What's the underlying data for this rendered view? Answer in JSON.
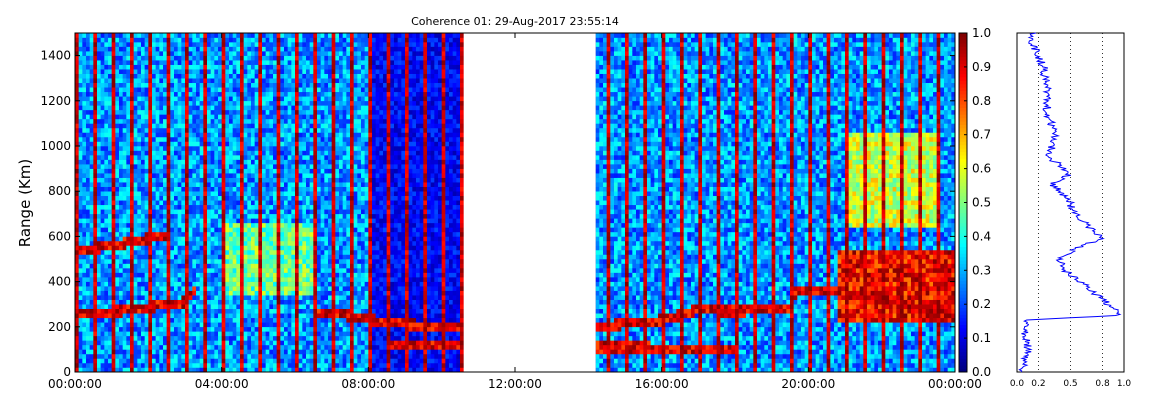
{
  "chart_data": {
    "type": "heatmap",
    "title": "Coherence 01: 29-Aug-2017 23:55:14",
    "ylabel": "Range (Km)",
    "xlabel": "",
    "x_tick_labels": [
      "00:00:00",
      "04:00:00",
      "08:00:00",
      "12:00:00",
      "16:00:00",
      "20:00:00",
      "00:00:00"
    ],
    "x_range_hours": [
      0,
      24
    ],
    "y_ticks": [
      0,
      200,
      400,
      600,
      800,
      1000,
      1200,
      1400
    ],
    "y_range_km": [
      0,
      1500
    ],
    "data_gap_hours": [
      10.6,
      14.2
    ],
    "colorbar": {
      "ticks": [
        0.0,
        0.1,
        0.2,
        0.3,
        0.4,
        0.5,
        0.6,
        0.7,
        0.8,
        0.9,
        1.0
      ],
      "tick_labels": [
        "0.0",
        "0.1",
        "0.2",
        "0.3",
        "0.4",
        "0.5",
        "0.6",
        "0.7",
        "0.8",
        "0.9",
        "1.0"
      ],
      "colormap": "jet",
      "range": [
        0.0,
        1.0
      ]
    },
    "layers": [
      {
        "hours": [
          0,
          1.5,
          3.0,
          3.3
        ],
        "range_km": [
          255,
          275,
          310,
          370
        ]
      },
      {
        "hours": [
          0,
          1.0,
          2.0,
          2.5
        ],
        "range_km": [
          530,
          560,
          590,
          600
        ]
      },
      {
        "hours": [
          6.5,
          7.5,
          8.5,
          9.5,
          10.5
        ],
        "range_km": [
          270,
          250,
          220,
          205,
          200
        ]
      },
      {
        "hours": [
          8.5,
          10.6
        ],
        "range_km": [
          115,
          115
        ]
      },
      {
        "hours": [
          14.2,
          16.0,
          17.0,
          18.0,
          19.5
        ],
        "range_km": [
          200,
          230,
          275,
          270,
          280
        ]
      },
      {
        "hours": [
          14.2,
          18.0
        ],
        "range_km": [
          110,
          105
        ]
      },
      {
        "hours": [
          19.5,
          20.5,
          22.0,
          23.0,
          24.0
        ],
        "range_km": [
          350,
          360,
          320,
          280,
          240
        ]
      }
    ],
    "enhanced_regions": [
      {
        "hours": [
          20.8,
          24.0
        ],
        "range_km": [
          230,
          530
        ],
        "coherence": 0.9
      },
      {
        "hours": [
          21.0,
          23.5
        ],
        "range_km": [
          650,
          1050
        ],
        "coherence": 0.6
      },
      {
        "hours": [
          4.0,
          6.5
        ],
        "range_km": [
          350,
          650
        ],
        "coherence": 0.5
      }
    ],
    "profile": {
      "x_tick_labels": [
        "0.0",
        "0.2",
        "0.5",
        "0.8",
        "1.0"
      ],
      "x_ticks": [
        0.0,
        0.2,
        0.5,
        0.8,
        1.0
      ],
      "x_range": [
        0.0,
        1.0
      ],
      "y_range_km": [
        0,
        1500
      ],
      "points": [
        {
          "range_km": 0,
          "coherence": 0.05
        },
        {
          "range_km": 100,
          "coherence": 0.1
        },
        {
          "range_km": 200,
          "coherence": 0.07
        },
        {
          "range_km": 230,
          "coherence": 0.08
        },
        {
          "range_km": 250,
          "coherence": 0.95
        },
        {
          "range_km": 270,
          "coherence": 0.97
        },
        {
          "range_km": 300,
          "coherence": 0.85
        },
        {
          "range_km": 350,
          "coherence": 0.72
        },
        {
          "range_km": 400,
          "coherence": 0.6
        },
        {
          "range_km": 450,
          "coherence": 0.45
        },
        {
          "range_km": 500,
          "coherence": 0.4
        },
        {
          "range_km": 560,
          "coherence": 0.6
        },
        {
          "range_km": 590,
          "coherence": 0.83
        },
        {
          "range_km": 620,
          "coherence": 0.72
        },
        {
          "range_km": 700,
          "coherence": 0.55
        },
        {
          "range_km": 780,
          "coherence": 0.45
        },
        {
          "range_km": 830,
          "coherence": 0.33
        },
        {
          "range_km": 880,
          "coherence": 0.5
        },
        {
          "range_km": 950,
          "coherence": 0.3
        },
        {
          "range_km": 1050,
          "coherence": 0.35
        },
        {
          "range_km": 1150,
          "coherence": 0.28
        },
        {
          "range_km": 1250,
          "coherence": 0.28
        },
        {
          "range_km": 1350,
          "coherence": 0.25
        },
        {
          "range_km": 1450,
          "coherence": 0.15
        },
        {
          "range_km": 1500,
          "coherence": 0.15
        }
      ]
    }
  }
}
